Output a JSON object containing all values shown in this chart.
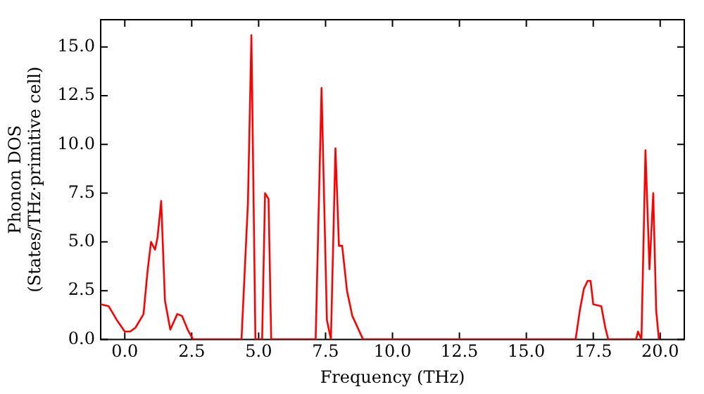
{
  "chart_data": {
    "type": "line",
    "xlabel": "Frequency (THz)",
    "ylabel": "Phonon DOS\n(States/THz·primitive cell)",
    "x": [
      -0.9,
      -0.6,
      -0.3,
      -0.1,
      0.0,
      0.2,
      0.4,
      0.7,
      0.85,
      0.98,
      1.13,
      1.22,
      1.36,
      1.5,
      1.7,
      1.96,
      2.14,
      2.35,
      2.55,
      4.36,
      4.6,
      4.73,
      4.88,
      5.13,
      5.24,
      5.37,
      5.47,
      7.13,
      7.35,
      7.55,
      7.7,
      7.75,
      7.87,
      8.0,
      8.12,
      8.3,
      8.5,
      8.9,
      16.84,
      17.0,
      17.15,
      17.29,
      17.4,
      17.5,
      17.8,
      17.95,
      18.06,
      19.1,
      19.17,
      19.3,
      19.45,
      19.6,
      19.74,
      19.85,
      19.95
    ],
    "series": [
      {
        "color": "#ff0000",
        "values": [
          1.8,
          1.7,
          1.0,
          0.6,
          0.4,
          0.4,
          0.6,
          1.3,
          3.5,
          5.0,
          4.6,
          5.2,
          7.1,
          2.0,
          0.5,
          1.3,
          1.2,
          0.5,
          0.0,
          0.0,
          7.0,
          15.6,
          0.0,
          0.0,
          7.5,
          7.2,
          0.0,
          0.0,
          12.9,
          1.0,
          0.0,
          0.0,
          9.8,
          4.8,
          4.8,
          2.5,
          1.2,
          0.0,
          0.0,
          1.5,
          2.6,
          3.0,
          3.0,
          1.8,
          1.7,
          0.6,
          0.0,
          0.0,
          0.4,
          0.0,
          9.7,
          3.6,
          7.5,
          1.5,
          0.0
        ]
      }
    ],
    "xlim": [
      -0.9,
      20.9
    ],
    "ylim": [
      0,
      16.4
    ],
    "xticks": [
      {
        "value": 0,
        "label": "0.0"
      },
      {
        "value": 2.5,
        "label": "2.5"
      },
      {
        "value": 5,
        "label": "5.0"
      },
      {
        "value": 7.5,
        "label": "7.5"
      },
      {
        "value": 10,
        "label": "10.0"
      },
      {
        "value": 12.5,
        "label": "12.5"
      },
      {
        "value": 15,
        "label": "15.0"
      },
      {
        "value": 17.5,
        "label": "17.5"
      },
      {
        "value": 20,
        "label": "20.0"
      }
    ],
    "yticks": [
      {
        "value": 0,
        "label": "0.0"
      },
      {
        "value": 2.5,
        "label": "2.5"
      },
      {
        "value": 5,
        "label": "5.0"
      },
      {
        "value": 7.5,
        "label": "7.5"
      },
      {
        "value": 10,
        "label": "10.0"
      },
      {
        "value": 12.5,
        "label": "12.5"
      },
      {
        "value": 15,
        "label": "15.0"
      }
    ],
    "grid": false,
    "legend": false,
    "marker": "none",
    "line_style": "solid"
  }
}
